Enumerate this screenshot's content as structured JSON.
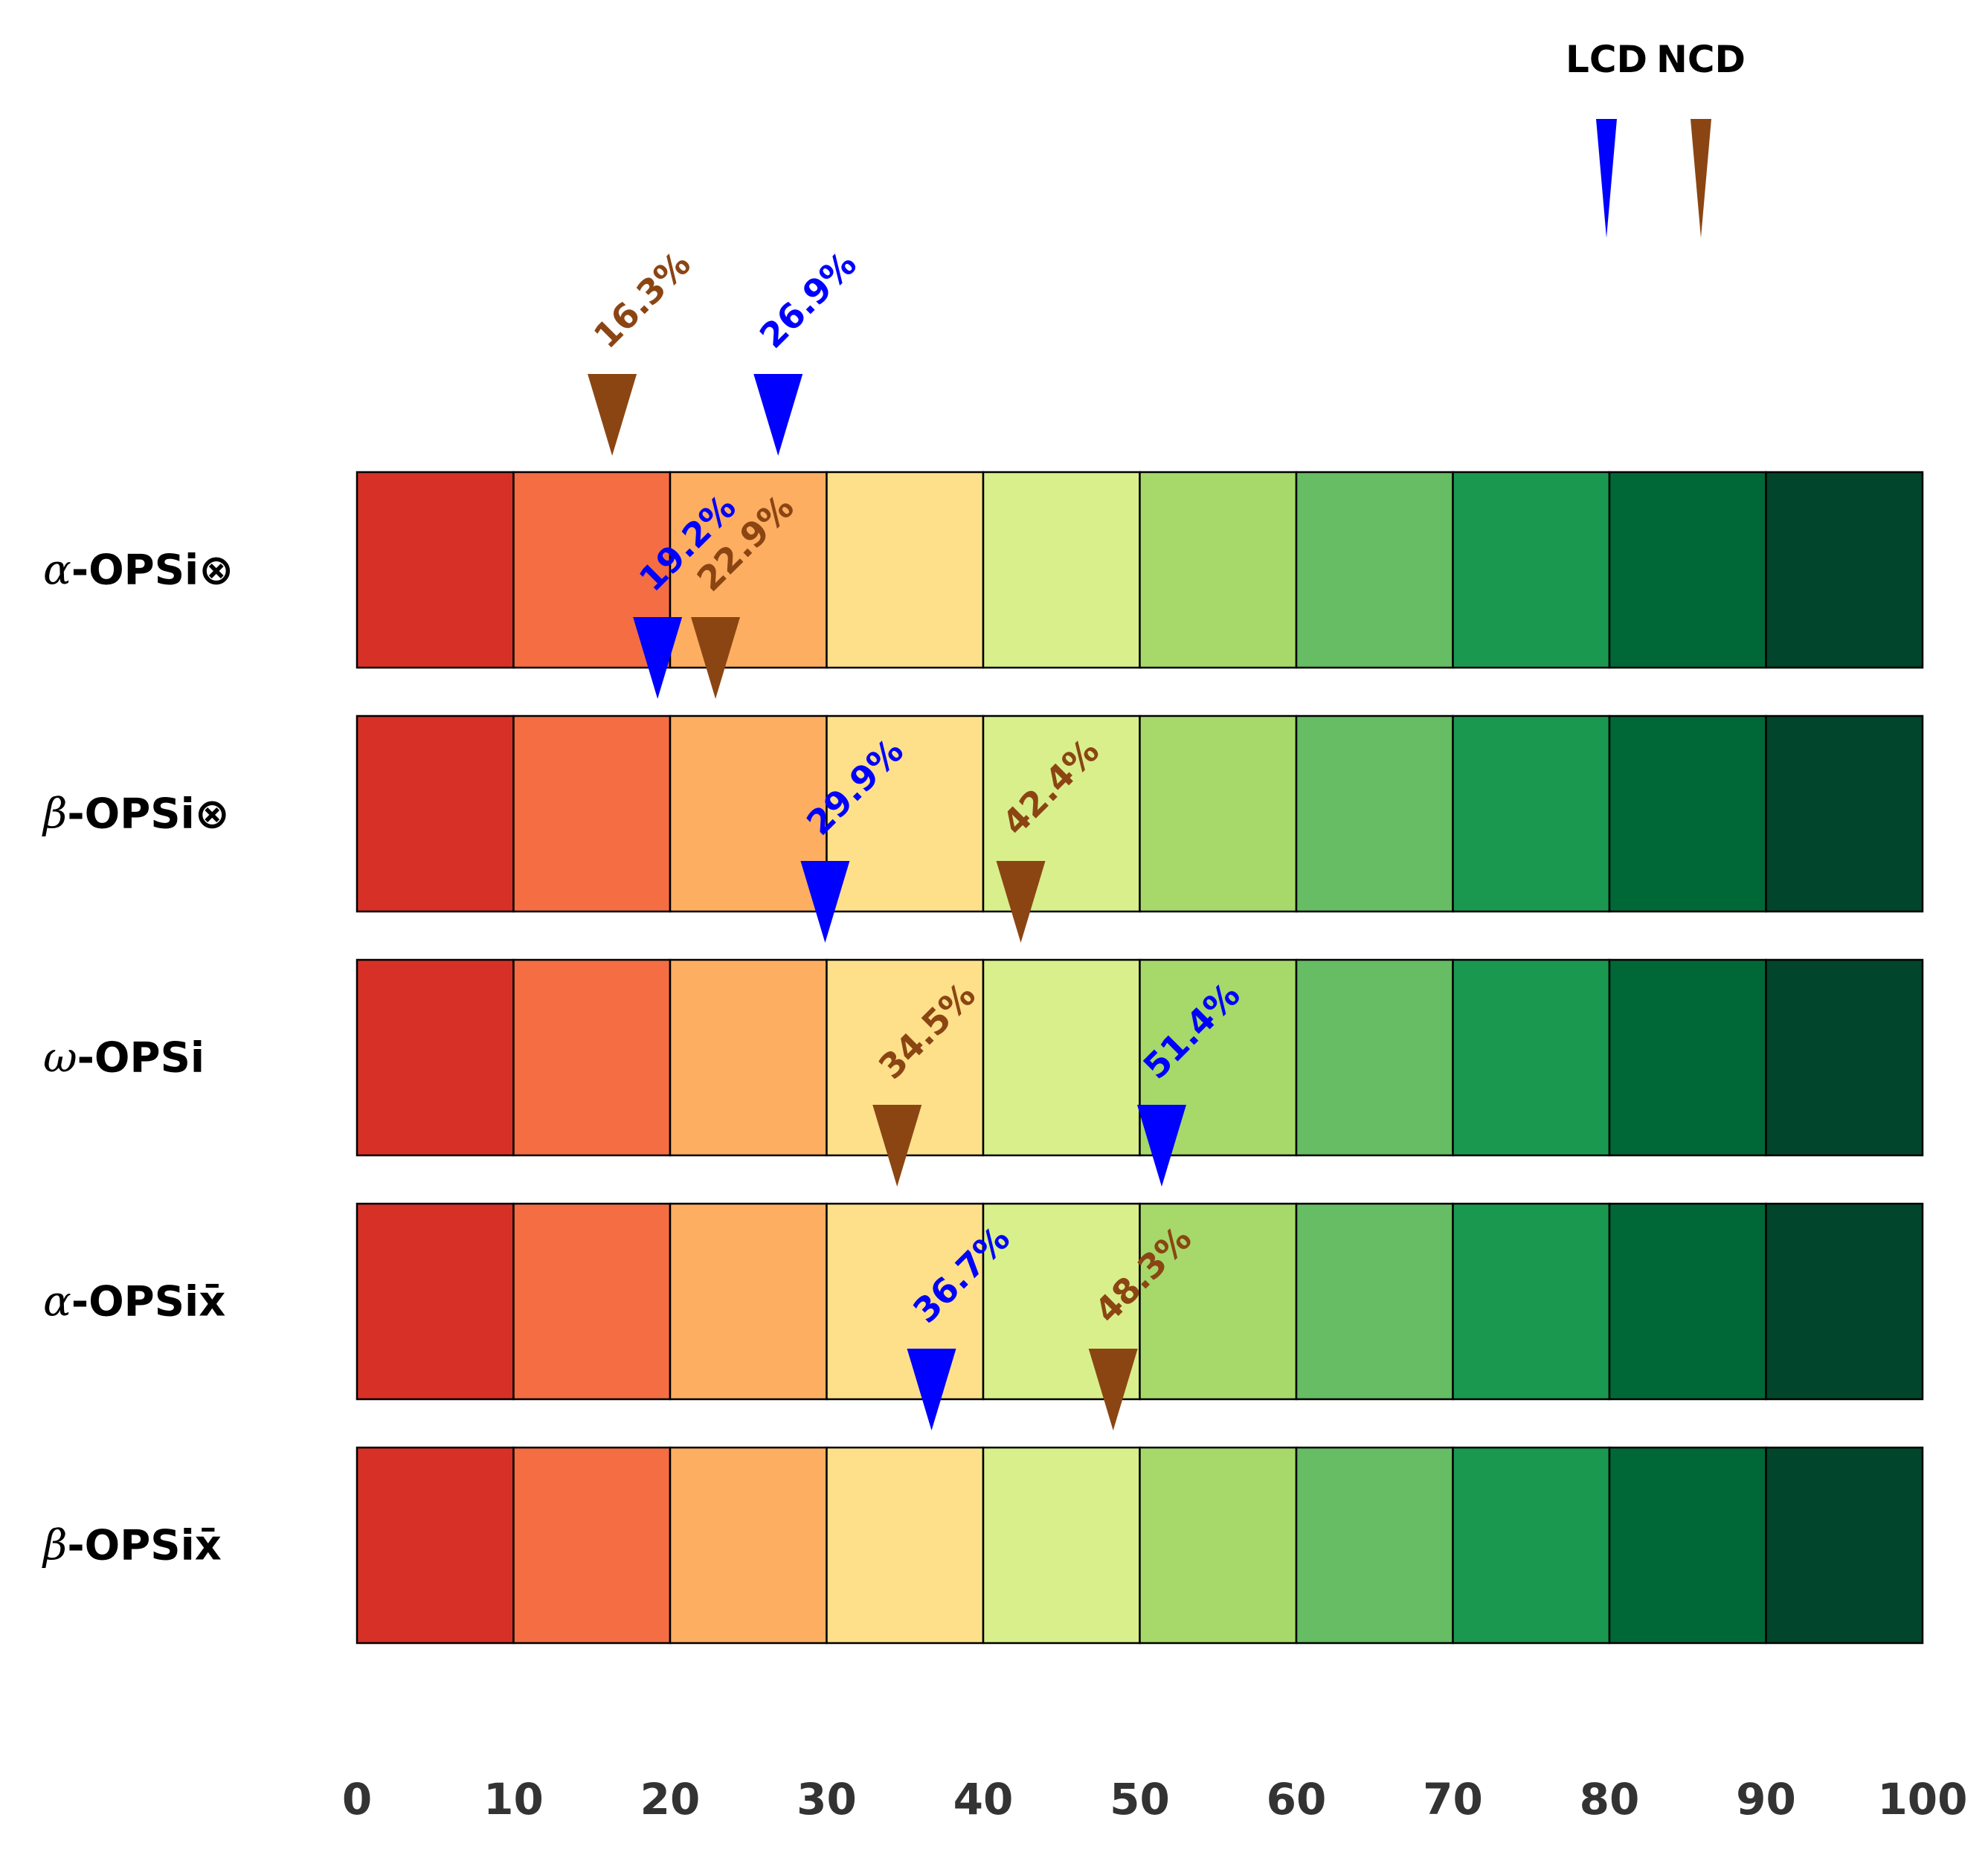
{
  "chart_data": {
    "type": "ranked-bar-scale",
    "title": "",
    "xlabel": "",
    "ylabel": "",
    "xlim": [
      0,
      100
    ],
    "bin_width": 10,
    "x_ticks": [
      "0",
      "10",
      "20",
      "30",
      "40",
      "50",
      "60",
      "70",
      "80",
      "90",
      "100"
    ],
    "bin_colors": [
      "#d73027",
      "#f46d43",
      "#fdae61",
      "#fee08b",
      "#d9ef8b",
      "#a6d96a",
      "#66bd63",
      "#1a9850",
      "#006837",
      "#00452c"
    ],
    "legend": [
      {
        "name": "LCD",
        "color": "#0000ff"
      },
      {
        "name": "NCD",
        "color": "#8b4513"
      }
    ],
    "rows": [
      {
        "label_greek": "α",
        "label_rest": "-OPSi⊗"
      },
      {
        "label_greek": "β",
        "label_rest": "-OPSi⊗"
      },
      {
        "label_greek": "ω",
        "label_rest": "-OPSi"
      },
      {
        "label_greek": "α",
        "label_rest": "-OPSix̄"
      },
      {
        "label_greek": "β",
        "label_rest": "-OPSix̄"
      }
    ],
    "markers": [
      {
        "series": "NCD",
        "value": 16.3,
        "text": "16.3%",
        "after_row": -1
      },
      {
        "series": "LCD",
        "value": 26.9,
        "text": "26.9%",
        "after_row": -1
      },
      {
        "series": "LCD",
        "value": 19.2,
        "text": "19.2%",
        "after_row": 0
      },
      {
        "series": "NCD",
        "value": 22.9,
        "text": "22.9%",
        "after_row": 0
      },
      {
        "series": "LCD",
        "value": 29.9,
        "text": "29.9%",
        "after_row": 1
      },
      {
        "series": "NCD",
        "value": 42.4,
        "text": "42.4%",
        "after_row": 1
      },
      {
        "series": "NCD",
        "value": 34.5,
        "text": "34.5%",
        "after_row": 2
      },
      {
        "series": "LCD",
        "value": 51.4,
        "text": "51.4%",
        "after_row": 2
      },
      {
        "series": "LCD",
        "value": 36.7,
        "text": "36.7%",
        "after_row": 3
      },
      {
        "series": "NCD",
        "value": 48.3,
        "text": "48.3%",
        "after_row": 3
      }
    ]
  }
}
